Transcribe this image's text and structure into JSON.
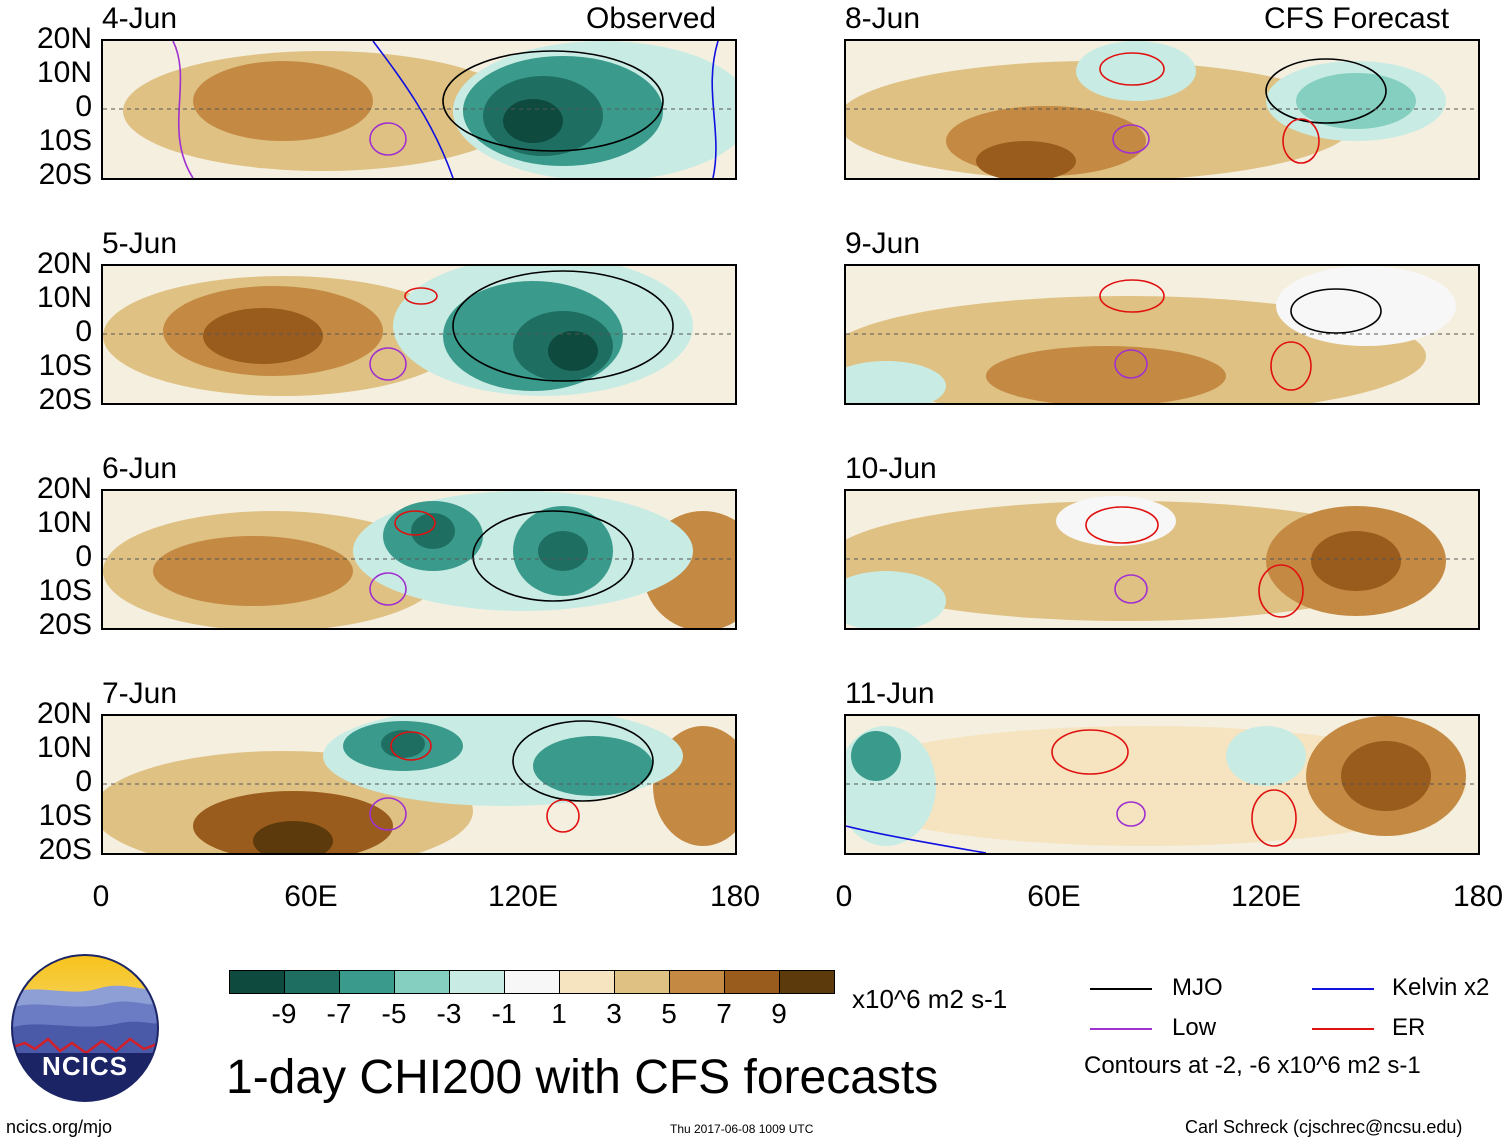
{
  "title": "1-day CHI200 with CFS forecasts",
  "observed_label": "Observed",
  "forecast_label": "CFS Forecast",
  "observed_panels": [
    {
      "date": "4-Jun"
    },
    {
      "date": "5-Jun"
    },
    {
      "date": "6-Jun"
    },
    {
      "date": "7-Jun"
    }
  ],
  "forecast_panels": [
    {
      "date": "8-Jun"
    },
    {
      "date": "9-Jun"
    },
    {
      "date": "10-Jun"
    },
    {
      "date": "11-Jun"
    }
  ],
  "lat_ticks": [
    "20N",
    "10N",
    "0",
    "10S",
    "20S"
  ],
  "lon_ticks": [
    "0",
    "60E",
    "120E",
    "180"
  ],
  "colorbar": {
    "colors": [
      "#0f4a3e",
      "#1f6e62",
      "#3a9a8c",
      "#84cfc0",
      "#c8ece4",
      "#f7f7f7",
      "#f5e4bf",
      "#dfc183",
      "#c48a43",
      "#9a5c1c",
      "#5c3a0c"
    ],
    "labels": [
      "-9",
      "-7",
      "-5",
      "-3",
      "-1",
      "1",
      "3",
      "5",
      "7",
      "9"
    ],
    "units": "x10^6 m2 s-1"
  },
  "legend": {
    "mjo": {
      "label": "MJO",
      "color": "#000000"
    },
    "kelvin": {
      "label": "Kelvin x2",
      "color": "#1010e0"
    },
    "low": {
      "label": "Low",
      "color": "#a030d0"
    },
    "er": {
      "label": "ER",
      "color": "#e01010"
    },
    "contours_note": "Contours at -2, -6 x10^6 m2 s-1"
  },
  "logo_text": "NCICS",
  "footer": {
    "site": "ncics.org/mjo",
    "timestamp": "Thu 2017-06-08 1009 UTC",
    "author": "Carl Schreck (cjschrec@ncsu.edu)"
  }
}
